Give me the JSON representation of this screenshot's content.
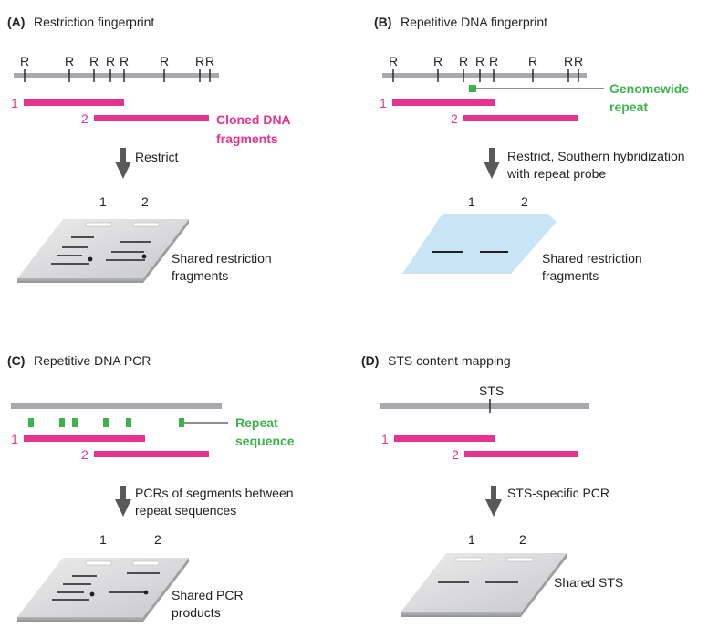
{
  "panels": {
    "a": {
      "letter": "(A)",
      "title": "Restriction fingerprint",
      "sites": [
        "R",
        "R",
        "R",
        "R",
        "R",
        "R",
        "R",
        "R"
      ],
      "clone1": "1",
      "clone2": "2",
      "annotation": [
        "Cloned DNA",
        "fragments"
      ],
      "step": [
        "Restrict"
      ],
      "lane1": "1",
      "lane2": "2",
      "result": [
        "Shared restriction",
        "fragments"
      ]
    },
    "b": {
      "letter": "(B)",
      "title": "Repetitive DNA fingerprint",
      "sites": [
        "R",
        "R",
        "R",
        "R",
        "R",
        "R",
        "R",
        "R"
      ],
      "clone1": "1",
      "clone2": "2",
      "annotation": [
        "Genomewide",
        "repeat"
      ],
      "step": [
        "Restrict, Southern hybridization",
        "with repeat probe"
      ],
      "lane1": "1",
      "lane2": "2",
      "result": [
        "Shared restriction",
        "fragments"
      ]
    },
    "c": {
      "letter": "(C)",
      "title": "Repetitive DNA PCR",
      "clone1": "1",
      "clone2": "2",
      "annotation": [
        "Repeat",
        "sequence"
      ],
      "step": [
        "PCRs of segments between",
        "repeat sequences"
      ],
      "lane1": "1",
      "lane2": "2",
      "result": [
        "Shared PCR",
        "products"
      ]
    },
    "d": {
      "letter": "(D)",
      "title": "STS content mapping",
      "marker": "STS",
      "clone1": "1",
      "clone2": "2",
      "step": [
        "STS-specific PCR"
      ],
      "lane1": "1",
      "lane2": "2",
      "result": [
        "Shared STS"
      ]
    }
  },
  "colors": {
    "chromosome": "#a7a9ac",
    "clone": "#e6338f",
    "repeat": "#3cb44b",
    "arrow": "#58595b",
    "gel": "#d9dadb",
    "membrane": "#c9e5f5"
  }
}
